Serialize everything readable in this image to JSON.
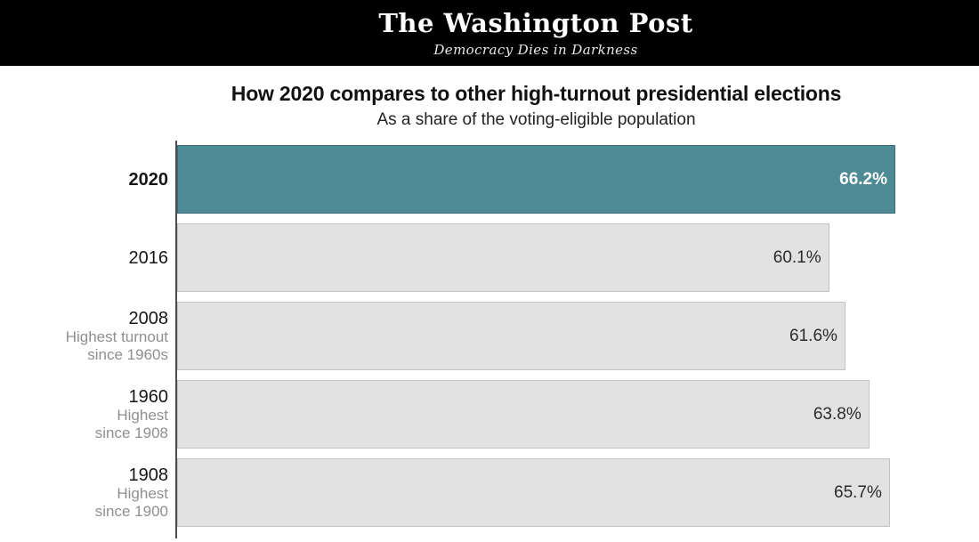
{
  "header": {
    "logo_text": "The Washington Post",
    "tagline": "Democracy Dies in Darkness",
    "background": "#000000"
  },
  "chart_data": {
    "type": "bar",
    "orientation": "horizontal",
    "title": "How 2020 compares to other high-turnout presidential elections",
    "subtitle": "As a share of the voting-eligible population",
    "categories": [
      "2020",
      "2016",
      "2008",
      "1960",
      "1908"
    ],
    "category_notes": [
      [],
      [],
      [
        "Highest turnout",
        "since 1960s"
      ],
      [
        "Highest",
        "since 1908"
      ],
      [
        "Highest",
        "since 1900"
      ]
    ],
    "values": [
      66.2,
      60.1,
      61.6,
      63.8,
      65.7
    ],
    "value_labels": [
      "66.2%",
      "60.1%",
      "61.6%",
      "63.8%",
      "65.7%"
    ],
    "xlim": [
      0,
      66.2
    ],
    "grid": false,
    "legend": null,
    "highlight_index": 0,
    "colors": {
      "highlight_fill": "#4e8a94",
      "highlight_border": "#3a6b76",
      "highlight_text": "#ffffff",
      "bar_fill": "#e2e2e2",
      "bar_border": "#c3c3c3",
      "bar_text": "#2b2b2b",
      "axis": "#4d4d4d",
      "note_text": "#8f8f8f"
    }
  }
}
